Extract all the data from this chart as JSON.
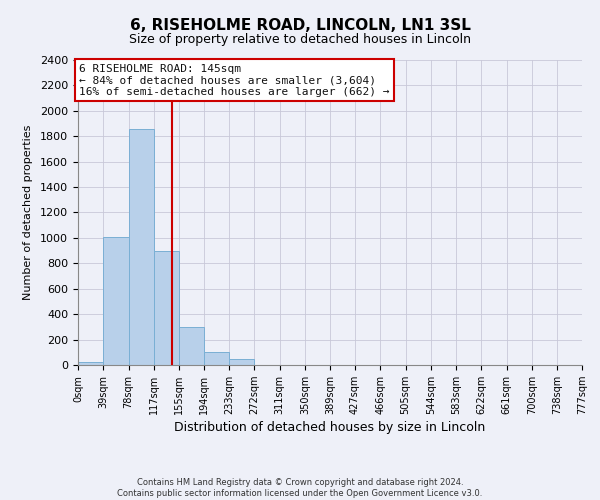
{
  "title": "6, RISEHOLME ROAD, LINCOLN, LN1 3SL",
  "subtitle": "Size of property relative to detached houses in Lincoln",
  "xlabel": "Distribution of detached houses by size in Lincoln",
  "ylabel": "Number of detached properties",
  "bin_edges": [
    0,
    39,
    78,
    117,
    155,
    194,
    233,
    272,
    311,
    350,
    389,
    427,
    466,
    505,
    544,
    583,
    622,
    661,
    700,
    738,
    777
  ],
  "bin_labels": [
    "0sqm",
    "39sqm",
    "78sqm",
    "117sqm",
    "155sqm",
    "194sqm",
    "233sqm",
    "272sqm",
    "311sqm",
    "350sqm",
    "389sqm",
    "427sqm",
    "466sqm",
    "505sqm",
    "544sqm",
    "583sqm",
    "622sqm",
    "661sqm",
    "700sqm",
    "738sqm",
    "777sqm"
  ],
  "bar_heights": [
    25,
    1010,
    1860,
    900,
    300,
    100,
    45,
    0,
    0,
    0,
    0,
    0,
    0,
    0,
    0,
    0,
    0,
    0,
    0,
    0
  ],
  "bar_color": "#b8d0ea",
  "bar_edge_color": "#7aafd4",
  "property_line_x": 145,
  "property_line_color": "#cc0000",
  "annotation_line1": "6 RISEHOLME ROAD: 145sqm",
  "annotation_line2": "← 84% of detached houses are smaller (3,604)",
  "annotation_line3": "16% of semi-detached houses are larger (662) →",
  "annotation_box_color": "#cc0000",
  "annotation_box_fill": "#ffffff",
  "ylim": [
    0,
    2400
  ],
  "yticks": [
    0,
    200,
    400,
    600,
    800,
    1000,
    1200,
    1400,
    1600,
    1800,
    2000,
    2200,
    2400
  ],
  "footer_line1": "Contains HM Land Registry data © Crown copyright and database right 2024.",
  "footer_line2": "Contains public sector information licensed under the Open Government Licence v3.0.",
  "grid_color": "#c8c8d8",
  "background_color": "#eef0f8",
  "title_fontsize": 11,
  "subtitle_fontsize": 9,
  "xlabel_fontsize": 9,
  "ylabel_fontsize": 8,
  "ytick_fontsize": 8,
  "xtick_fontsize": 7,
  "footer_fontsize": 6,
  "annot_fontsize": 8
}
